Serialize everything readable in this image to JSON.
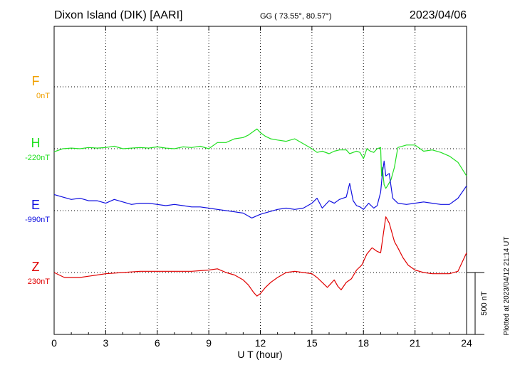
{
  "header": {
    "station": "Dixon Island (DIK)  [AARI]",
    "coords": "GG ( 73.55°,  80.57°)",
    "date": "2023/04/06"
  },
  "footer": {
    "plotted": "Plotted at 2023/04/12 21:14 UT"
  },
  "chart_data": {
    "type": "line",
    "xlabel": "U T (hour)",
    "xlim": [
      0,
      24
    ],
    "xticks": [
      "0",
      "3",
      "6",
      "9",
      "12",
      "15",
      "18",
      "21",
      "24"
    ],
    "scale_label": "500 nT",
    "scale_nT": 500,
    "series": [
      {
        "name": "F",
        "baseline_label": "0nT",
        "color": "#f0a000",
        "x": [],
        "y": []
      },
      {
        "name": "H",
        "baseline_label": "-220nT",
        "color": "#22e022",
        "x": [
          0,
          0.5,
          1,
          1.5,
          2,
          2.5,
          3,
          3.5,
          4,
          4.5,
          5,
          5.5,
          6,
          6.5,
          7,
          7.5,
          8,
          8.5,
          9,
          9.5,
          10,
          10.5,
          11,
          11.3,
          11.6,
          11.8,
          12,
          12.3,
          12.6,
          13,
          13.5,
          14,
          14.5,
          15,
          15.3,
          15.6,
          16,
          16.3,
          16.6,
          17,
          17.2,
          17.4,
          17.6,
          17.8,
          18,
          18.2,
          18.4,
          18.6,
          18.8,
          19,
          19.05,
          19.1,
          19.2,
          19.3,
          19.4,
          19.6,
          19.8,
          20,
          20.5,
          21,
          21.5,
          22,
          22.5,
          23,
          23.5,
          24
        ],
        "y": [
          -25,
          0,
          5,
          0,
          10,
          5,
          10,
          20,
          0,
          5,
          10,
          5,
          15,
          5,
          0,
          15,
          10,
          20,
          0,
          50,
          50,
          80,
          90,
          110,
          140,
          160,
          130,
          100,
          80,
          70,
          60,
          80,
          40,
          0,
          -30,
          -20,
          -40,
          -20,
          -10,
          -10,
          -40,
          -30,
          -20,
          -30,
          -80,
          0,
          -20,
          -30,
          0,
          10,
          -220,
          -150,
          -290,
          -320,
          -300,
          -250,
          -150,
          10,
          30,
          30,
          -20,
          -10,
          -30,
          -60,
          -110,
          -220
        ]
      },
      {
        "name": "E",
        "baseline_label": "-990nT",
        "color": "#1010e0",
        "x": [
          0,
          0.5,
          1,
          1.5,
          2,
          2.5,
          3,
          3.5,
          4,
          4.5,
          5,
          5.5,
          6,
          6.5,
          7,
          7.5,
          8,
          8.5,
          9,
          9.5,
          10,
          10.5,
          11,
          11.5,
          12,
          12.5,
          13,
          13.5,
          14,
          14.5,
          15,
          15.3,
          15.6,
          16,
          16.3,
          16.6,
          17,
          17.2,
          17.4,
          17.6,
          17.8,
          18,
          18.3,
          18.6,
          18.8,
          19,
          19.1,
          19.2,
          19.3,
          19.5,
          19.7,
          20,
          20.5,
          21,
          21.5,
          22,
          22.5,
          23,
          23.5,
          24
        ],
        "y": [
          130,
          110,
          90,
          100,
          80,
          80,
          60,
          90,
          70,
          50,
          60,
          60,
          50,
          40,
          50,
          40,
          30,
          30,
          20,
          10,
          0,
          -10,
          -20,
          -60,
          -30,
          -10,
          10,
          20,
          10,
          20,
          60,
          100,
          20,
          80,
          60,
          90,
          110,
          220,
          80,
          40,
          30,
          10,
          60,
          20,
          40,
          150,
          300,
          400,
          280,
          300,
          100,
          60,
          50,
          60,
          70,
          60,
          50,
          50,
          100,
          200
        ]
      },
      {
        "name": "Z",
        "baseline_label": "230nT",
        "color": "#e00000",
        "x": [
          0,
          0.3,
          0.6,
          1,
          1.5,
          2,
          2.5,
          3,
          4,
          5,
          6,
          7,
          8,
          9,
          9.5,
          10,
          10.5,
          11,
          11.3,
          11.6,
          11.8,
          12,
          12.3,
          12.6,
          13,
          13.5,
          14,
          14.5,
          15,
          15.3,
          15.6,
          15.9,
          16.1,
          16.3,
          16.5,
          16.7,
          17,
          17.3,
          17.6,
          17.9,
          18.2,
          18.5,
          18.8,
          19,
          19.3,
          19.5,
          19.8,
          20,
          20.3,
          20.6,
          21,
          21.5,
          22,
          22.5,
          23,
          23.5,
          24
        ],
        "y": [
          0,
          -20,
          -40,
          -40,
          -40,
          -30,
          -20,
          -10,
          0,
          10,
          10,
          10,
          10,
          20,
          30,
          0,
          -20,
          -60,
          -100,
          -160,
          -190,
          -170,
          -120,
          -80,
          -40,
          0,
          10,
          0,
          -10,
          -40,
          -80,
          -120,
          -90,
          -60,
          -110,
          -140,
          -80,
          -50,
          20,
          60,
          150,
          200,
          170,
          160,
          450,
          400,
          250,
          200,
          120,
          60,
          20,
          0,
          -10,
          -10,
          -10,
          10,
          160
        ]
      }
    ]
  }
}
